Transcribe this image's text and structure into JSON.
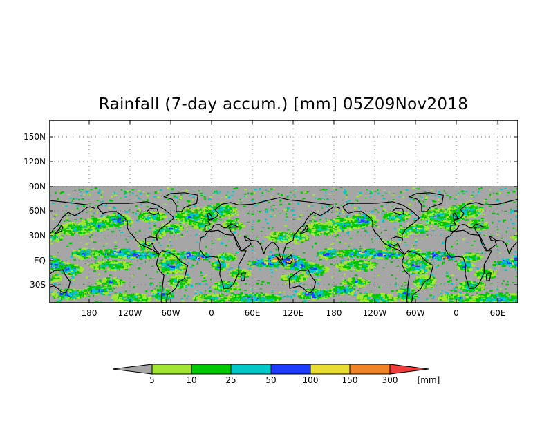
{
  "title": "Rainfall (7-day accum.) [mm] 05Z09Nov2018",
  "map": {
    "lat_labels": [
      "150N",
      "120N",
      "90N",
      "60N",
      "30N",
      "EQ",
      "30S"
    ],
    "lon_labels": [
      "180",
      "120W",
      "60W",
      "0",
      "60E",
      "120E",
      "180",
      "120W",
      "60W",
      "0",
      "60E"
    ],
    "no_data_color": "#a6a6a6",
    "grid": "dotted"
  },
  "colorbar": {
    "thresholds": [
      "5",
      "10",
      "25",
      "50",
      "100",
      "150",
      "300"
    ],
    "unit": "[mm]",
    "colors": [
      "#a6a6a6",
      "#a0e632",
      "#00c800",
      "#00c8c8",
      "#1e3cff",
      "#e6dc32",
      "#f08228",
      "#f03c3c"
    ]
  }
}
